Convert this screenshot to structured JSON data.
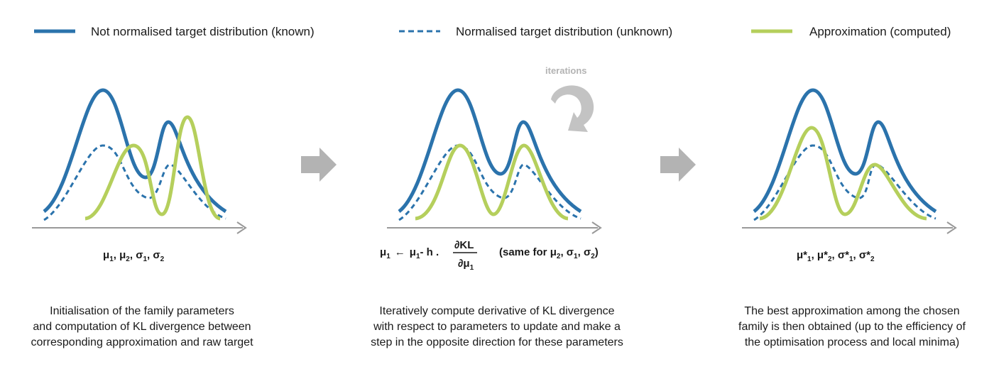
{
  "legend": {
    "items": [
      {
        "label": "Not normalised target distribution (known)",
        "style": "solid",
        "color": "#2b73ac"
      },
      {
        "label": "Normalised target distribution (unknown)",
        "style": "dashed",
        "color": "#2b73ac"
      },
      {
        "label": "Approximation (computed)",
        "style": "solid",
        "color": "#b5cf5c"
      }
    ]
  },
  "colors": {
    "target": "#2b73ac",
    "approx": "#b5cf5c",
    "arrow": "#b3b3b3",
    "axis": "#999999"
  },
  "icons": [
    "arrow-right-icon",
    "circular-arrow-icon"
  ],
  "panels": [
    {
      "params_label": {
        "mu": "μ",
        "sub1": "1",
        "sub2": "2",
        "sigma": "σ",
        "sep": ", "
      },
      "caption": [
        "Initialisation of the family parameters",
        "and computation of KL divergence between",
        "corresponding approximation and raw target"
      ]
    },
    {
      "update_rule": {
        "lhs_mu": "μ",
        "lhs_sub": "1",
        "arrow": "←",
        "rhs_mu": "μ",
        "rhs_sub": "1",
        "minus_h": "- h .",
        "numerator": "∂KL",
        "denominator": "∂μ",
        "den_sub": "1",
        "same_prefix": "(same for μ",
        "same_sub2": "2",
        "same_sigma": ", σ",
        "same_sub1": "1",
        "same_sub3": "2",
        "same_close": ")"
      },
      "iterations_label": "iterations",
      "caption": [
        "Iteratively compute derivative of KL divergence",
        "with respect to parameters to update and make a",
        "step in the opposite direction for these parameters"
      ]
    },
    {
      "params_label": {
        "mu": "μ*",
        "sigma": "σ*",
        "sub1": "1",
        "sub2": "2",
        "sep": ", "
      },
      "caption": [
        "The best approximation among the chosen",
        "family is then obtained (up to the efficiency of",
        "the optimisation process and local minima)"
      ]
    }
  ]
}
